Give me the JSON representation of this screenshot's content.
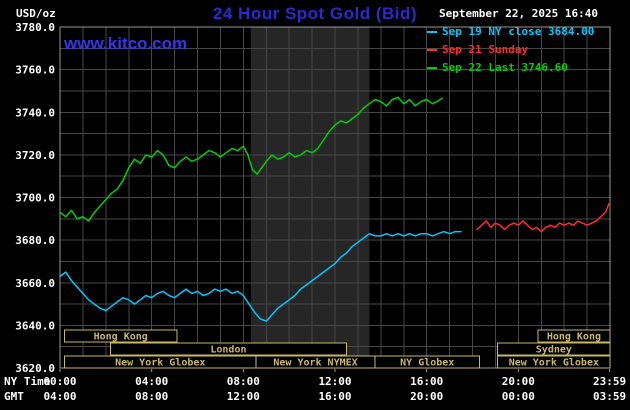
{
  "header": {
    "units_label": "USD/oz",
    "title": "24 Hour Spot Gold (Bid)",
    "watermark": "www.kitco.com",
    "datetime": "September 22, 2025 16:40"
  },
  "legend": [
    {
      "label": "Sep 19 NY close 3684.00",
      "color": "#00c8ff"
    },
    {
      "label": "Sep 21 Sunday",
      "color": "#ff2a2a"
    },
    {
      "label": "Sep 22 Last 3746.60",
      "color": "#00cf00"
    }
  ],
  "axes": {
    "ny_caption": "NY Time",
    "gmt_caption": "GMT",
    "y_ticks": [
      {
        "value": 3780,
        "label": "3780.0"
      },
      {
        "value": 3760,
        "label": "3760.0"
      },
      {
        "value": 3740,
        "label": "3740.0"
      },
      {
        "value": 3720,
        "label": "3720.0"
      },
      {
        "value": 3700,
        "label": "3700.0"
      },
      {
        "value": 3680,
        "label": "3680.0"
      },
      {
        "value": 3660,
        "label": "3660.0"
      },
      {
        "value": 3640,
        "label": "3640.0"
      },
      {
        "value": 3620,
        "label": "3620.0"
      }
    ],
    "x_ticks_ny": [
      {
        "hour": 0,
        "label": "00:00"
      },
      {
        "hour": 4,
        "label": "04:00"
      },
      {
        "hour": 8,
        "label": "08:00"
      },
      {
        "hour": 12,
        "label": "12:00"
      },
      {
        "hour": 16,
        "label": "16:00"
      },
      {
        "hour": 20,
        "label": "20:00"
      },
      {
        "hour": 23.983,
        "label": "23:59"
      }
    ],
    "x_ticks_gmt": [
      {
        "hour": 0,
        "label": "04:00"
      },
      {
        "hour": 4,
        "label": "08:00"
      },
      {
        "hour": 8,
        "label": "12:00"
      },
      {
        "hour": 12,
        "label": "16:00"
      },
      {
        "hour": 16,
        "label": "20:00"
      },
      {
        "hour": 20,
        "label": "00:00"
      },
      {
        "hour": 23.983,
        "label": "03:59"
      }
    ]
  },
  "sessions": {
    "rows": [
      {
        "items": [
          {
            "label": "Hong Kong",
            "start": 0.2,
            "end": 5.1
          },
          {
            "label": "Hong Kong",
            "start": 20.85,
            "end": 24
          }
        ]
      },
      {
        "items": [
          {
            "label": "London",
            "start": 2.2,
            "end": 12.5
          },
          {
            "label": "Sydney",
            "start": 19.1,
            "end": 24
          }
        ]
      },
      {
        "items": [
          {
            "label": "New York Globex",
            "start": 0.2,
            "end": 8.55
          },
          {
            "label": "New York NYMEX",
            "start": 8.55,
            "end": 13.75
          },
          {
            "label": "NY Globex",
            "start": 13.75,
            "end": 18.3
          },
          {
            "label": "New York Globex",
            "start": 19.1,
            "end": 24
          }
        ]
      }
    ]
  },
  "colors": {
    "background": "#000000",
    "title_blue": "#2a2ad2",
    "watermark_blue": "#3636e8",
    "text": "#ffffff",
    "grid": "#474747",
    "plot_border": "#999999",
    "nymex_band": "#262626",
    "session_box": "#c9b868",
    "series_sep19": "#00c8ff",
    "series_sep21": "#ff2a2a",
    "series_sep22": "#00cf00"
  },
  "chart_data": {
    "type": "line",
    "title": "24 Hour Spot Gold (Bid)",
    "xlabel": "NY Time (hours 00:00-23:59)",
    "ylabel": "USD/oz",
    "xlim": [
      0,
      24
    ],
    "ylim": [
      3620,
      3780
    ],
    "y_tick_step": 20,
    "grid_step": {
      "x_hours": 1,
      "y_usd": 10
    },
    "highlight_band_hours": [
      8.33,
      13.5
    ],
    "legend_position": "top-right",
    "series": [
      {
        "name": "Sep 19 NY close 3684.00",
        "color": "#00c8ff",
        "points": [
          [
            0,
            3663
          ],
          [
            0.25,
            3665
          ],
          [
            0.5,
            3661
          ],
          [
            0.75,
            3658
          ],
          [
            1,
            3655
          ],
          [
            1.25,
            3652
          ],
          [
            1.5,
            3650
          ],
          [
            1.75,
            3648
          ],
          [
            2,
            3647
          ],
          [
            2.25,
            3649
          ],
          [
            2.5,
            3651
          ],
          [
            2.75,
            3653
          ],
          [
            3,
            3652
          ],
          [
            3.25,
            3650
          ],
          [
            3.5,
            3652
          ],
          [
            3.75,
            3654
          ],
          [
            4,
            3653
          ],
          [
            4.25,
            3655
          ],
          [
            4.5,
            3656
          ],
          [
            4.75,
            3654
          ],
          [
            5,
            3653
          ],
          [
            5.25,
            3655
          ],
          [
            5.5,
            3657
          ],
          [
            5.75,
            3655
          ],
          [
            6,
            3656
          ],
          [
            6.25,
            3654
          ],
          [
            6.5,
            3655
          ],
          [
            6.75,
            3657
          ],
          [
            7,
            3656
          ],
          [
            7.25,
            3657
          ],
          [
            7.5,
            3655
          ],
          [
            7.75,
            3656
          ],
          [
            8,
            3654
          ],
          [
            8.25,
            3650
          ],
          [
            8.5,
            3646
          ],
          [
            8.75,
            3643
          ],
          [
            9,
            3642
          ],
          [
            9.25,
            3645
          ],
          [
            9.5,
            3648
          ],
          [
            9.75,
            3650
          ],
          [
            10,
            3652
          ],
          [
            10.25,
            3654
          ],
          [
            10.5,
            3657
          ],
          [
            10.75,
            3659
          ],
          [
            11,
            3661
          ],
          [
            11.25,
            3663
          ],
          [
            11.5,
            3665
          ],
          [
            11.75,
            3667
          ],
          [
            12,
            3669
          ],
          [
            12.25,
            3672
          ],
          [
            12.5,
            3674
          ],
          [
            12.75,
            3677
          ],
          [
            13,
            3679
          ],
          [
            13.25,
            3681
          ],
          [
            13.5,
            3683
          ],
          [
            13.75,
            3682
          ],
          [
            14,
            3682
          ],
          [
            14.25,
            3683
          ],
          [
            14.5,
            3682
          ],
          [
            14.75,
            3683
          ],
          [
            15,
            3682
          ],
          [
            15.25,
            3683
          ],
          [
            15.5,
            3682
          ],
          [
            15.75,
            3683
          ],
          [
            16,
            3683
          ],
          [
            16.25,
            3682
          ],
          [
            16.5,
            3683
          ],
          [
            16.75,
            3684
          ],
          [
            17,
            3683
          ],
          [
            17.25,
            3684
          ],
          [
            17.5,
            3684
          ]
        ]
      },
      {
        "name": "Sep 21 Sunday",
        "color": "#ff2a2a",
        "points": [
          [
            18.2,
            3685
          ],
          [
            18.4,
            3687
          ],
          [
            18.6,
            3689
          ],
          [
            18.8,
            3686
          ],
          [
            19,
            3688
          ],
          [
            19.2,
            3687
          ],
          [
            19.4,
            3685
          ],
          [
            19.6,
            3687
          ],
          [
            19.8,
            3688
          ],
          [
            20,
            3687
          ],
          [
            20.2,
            3689
          ],
          [
            20.4,
            3687
          ],
          [
            20.6,
            3685
          ],
          [
            20.8,
            3686
          ],
          [
            21,
            3684
          ],
          [
            21.2,
            3686
          ],
          [
            21.4,
            3687
          ],
          [
            21.6,
            3686
          ],
          [
            21.8,
            3688
          ],
          [
            22,
            3687
          ],
          [
            22.2,
            3688
          ],
          [
            22.4,
            3687
          ],
          [
            22.6,
            3689
          ],
          [
            22.8,
            3688
          ],
          [
            23,
            3687
          ],
          [
            23.2,
            3688
          ],
          [
            23.4,
            3689
          ],
          [
            23.6,
            3691
          ],
          [
            23.8,
            3693
          ],
          [
            23.95,
            3697
          ]
        ]
      },
      {
        "name": "Sep 22 Last 3746.60",
        "color": "#00cf00",
        "points": [
          [
            0,
            3693
          ],
          [
            0.25,
            3691
          ],
          [
            0.5,
            3694
          ],
          [
            0.75,
            3690
          ],
          [
            1,
            3691
          ],
          [
            1.25,
            3689
          ],
          [
            1.5,
            3693
          ],
          [
            1.75,
            3696
          ],
          [
            2,
            3699
          ],
          [
            2.25,
            3702
          ],
          [
            2.5,
            3704
          ],
          [
            2.75,
            3708
          ],
          [
            3,
            3714
          ],
          [
            3.25,
            3718
          ],
          [
            3.5,
            3716
          ],
          [
            3.75,
            3720
          ],
          [
            4,
            3719
          ],
          [
            4.25,
            3722
          ],
          [
            4.5,
            3720
          ],
          [
            4.75,
            3715
          ],
          [
            5,
            3714
          ],
          [
            5.25,
            3717
          ],
          [
            5.5,
            3719
          ],
          [
            5.75,
            3717
          ],
          [
            6,
            3718
          ],
          [
            6.25,
            3720
          ],
          [
            6.5,
            3722
          ],
          [
            6.75,
            3721
          ],
          [
            7,
            3719
          ],
          [
            7.25,
            3721
          ],
          [
            7.5,
            3723
          ],
          [
            7.75,
            3722
          ],
          [
            8,
            3724
          ],
          [
            8.2,
            3720
          ],
          [
            8.4,
            3713
          ],
          [
            8.6,
            3711
          ],
          [
            8.8,
            3714
          ],
          [
            9,
            3717
          ],
          [
            9.25,
            3720
          ],
          [
            9.5,
            3718
          ],
          [
            9.75,
            3719
          ],
          [
            10,
            3721
          ],
          [
            10.25,
            3719
          ],
          [
            10.5,
            3720
          ],
          [
            10.75,
            3722
          ],
          [
            11,
            3721
          ],
          [
            11.25,
            3723
          ],
          [
            11.5,
            3727
          ],
          [
            11.75,
            3731
          ],
          [
            12,
            3734
          ],
          [
            12.25,
            3736
          ],
          [
            12.5,
            3735
          ],
          [
            12.75,
            3737
          ],
          [
            13,
            3739
          ],
          [
            13.25,
            3742
          ],
          [
            13.5,
            3744
          ],
          [
            13.75,
            3746
          ],
          [
            14,
            3745
          ],
          [
            14.25,
            3743
          ],
          [
            14.5,
            3746
          ],
          [
            14.75,
            3747
          ],
          [
            15,
            3744
          ],
          [
            15.25,
            3746
          ],
          [
            15.5,
            3743
          ],
          [
            15.75,
            3745
          ],
          [
            16,
            3746
          ],
          [
            16.25,
            3744
          ],
          [
            16.45,
            3745
          ],
          [
            16.67,
            3746.6
          ]
        ]
      }
    ]
  }
}
